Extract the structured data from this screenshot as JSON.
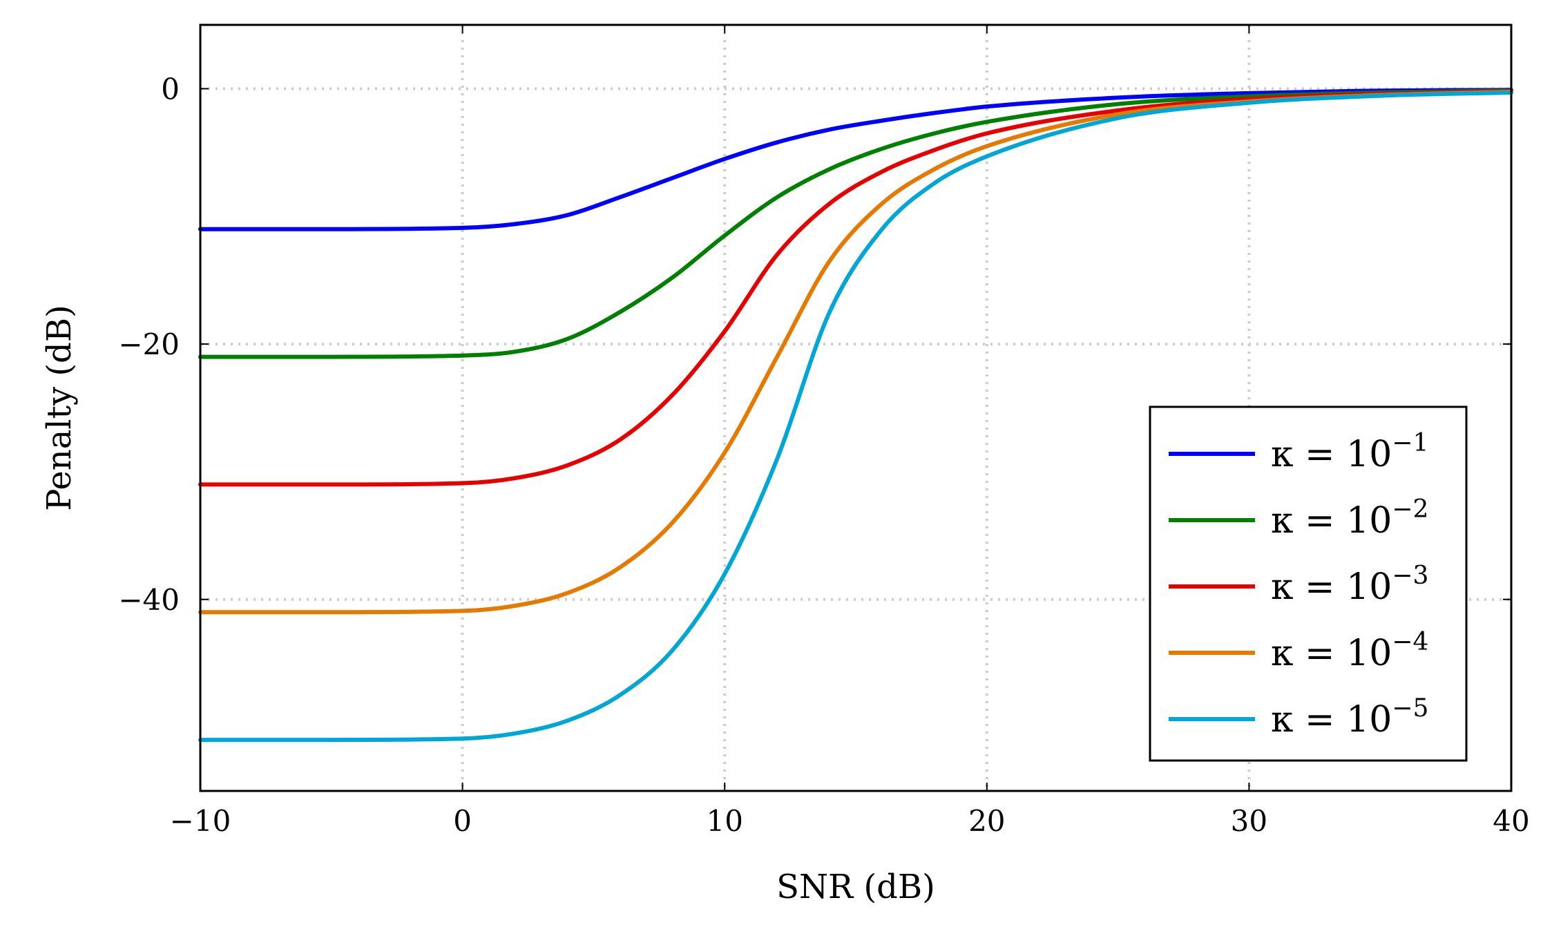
{
  "chart_data": {
    "type": "line",
    "xlabel": "SNR (dB)",
    "ylabel": "Penalty (dB)",
    "xlim": [
      -10,
      40
    ],
    "ylim": [
      -55,
      5
    ],
    "xticks": [
      -10,
      0,
      10,
      20,
      30,
      40
    ],
    "yticks": [
      0,
      -20,
      -40
    ],
    "xtick_labels": [
      "−10",
      "0",
      "10",
      "20",
      "30",
      "40"
    ],
    "ytick_labels": [
      "0",
      "−20",
      "−40"
    ],
    "grid": true,
    "legend_position": "bottom-right",
    "x": [
      -10,
      -5,
      0,
      2,
      4,
      6,
      8,
      10,
      12,
      14,
      16,
      18,
      20,
      25,
      30,
      35,
      40
    ],
    "series": [
      {
        "name": "κ = 10⁻¹",
        "legend_base": "κ = 10",
        "legend_exp": "−1",
        "color": "#0000ff",
        "values": [
          -11.0,
          -11.0,
          -10.9,
          -10.6,
          -9.9,
          -8.5,
          -7.0,
          -5.5,
          -4.2,
          -3.2,
          -2.5,
          -1.9,
          -1.4,
          -0.7,
          -0.35,
          -0.15,
          -0.1
        ]
      },
      {
        "name": "κ = 10⁻²",
        "legend_base": "κ = 10",
        "legend_exp": "−2",
        "color": "#008000",
        "values": [
          -21.0,
          -21.0,
          -20.9,
          -20.6,
          -19.6,
          -17.5,
          -14.8,
          -11.5,
          -8.5,
          -6.3,
          -4.7,
          -3.5,
          -2.6,
          -1.2,
          -0.6,
          -0.3,
          -0.15
        ]
      },
      {
        "name": "κ = 10⁻³",
        "legend_base": "κ = 10",
        "legend_exp": "−3",
        "color": "#e60000",
        "values": [
          -31.0,
          -31.0,
          -30.9,
          -30.5,
          -29.5,
          -27.5,
          -24.0,
          -19.0,
          -13.0,
          -9.0,
          -6.5,
          -4.8,
          -3.5,
          -1.7,
          -0.8,
          -0.4,
          -0.2
        ]
      },
      {
        "name": "κ = 10⁻⁴",
        "legend_base": "κ = 10",
        "legend_exp": "−4",
        "color": "#e67a00",
        "values": [
          -41.0,
          -41.0,
          -40.9,
          -40.5,
          -39.5,
          -37.5,
          -34.0,
          -28.5,
          -21.0,
          -13.5,
          -9.0,
          -6.3,
          -4.5,
          -2.0,
          -1.0,
          -0.5,
          -0.25
        ]
      },
      {
        "name": "κ = 10⁻⁵",
        "legend_base": "κ = 10",
        "legend_exp": "−5",
        "color": "#00a6d6",
        "values": [
          -51.0,
          -51.0,
          -50.9,
          -50.5,
          -49.5,
          -47.5,
          -44.0,
          -38.0,
          -29.0,
          -17.5,
          -11.0,
          -7.4,
          -5.3,
          -2.3,
          -1.1,
          -0.55,
          -0.3
        ]
      }
    ]
  }
}
